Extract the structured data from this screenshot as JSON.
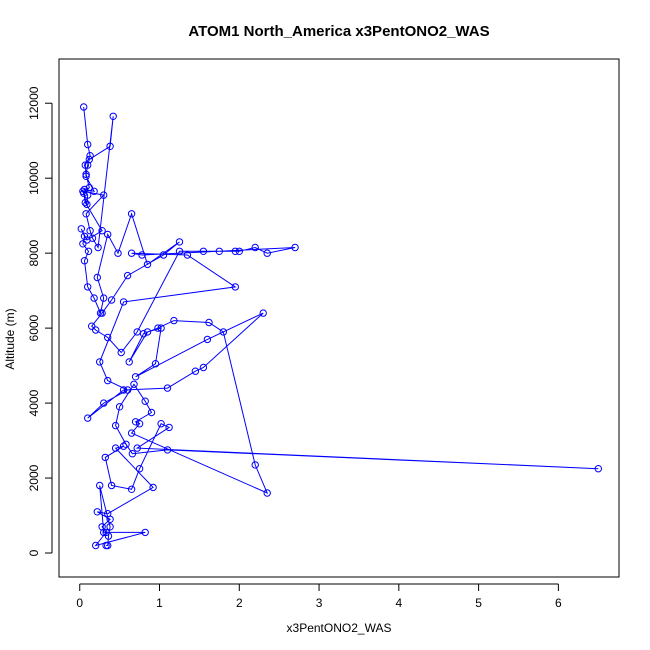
{
  "chart_data": {
    "type": "line",
    "title": "ATOM1 North_America x3PentONO2_WAS",
    "xlabel": "x3PentONO2_WAS",
    "ylabel": "Altitude (m)",
    "xlim": [
      -0.26,
      6.76
    ],
    "ylim": [
      -640,
      13180
    ],
    "xticks": [
      0,
      1,
      2,
      3,
      4,
      5,
      6
    ],
    "yticks": [
      0,
      2000,
      4000,
      6000,
      8000,
      10000,
      12000
    ],
    "grid": false,
    "legend": "none",
    "series": [
      {
        "color": "#0000ff",
        "marker": "open-circle",
        "x": [
          0.05,
          0.1,
          0.13,
          0.07,
          0.08,
          0.18,
          0.06,
          0.1,
          0.09,
          0.04,
          0.3,
          0.08,
          0.13,
          0.16,
          0.23,
          0.42,
          0.38,
          0.12,
          0.1,
          0.08,
          0.12,
          0.05,
          0.07,
          0.28,
          0.09,
          0.02,
          0.06,
          0.04,
          0.11,
          0.06,
          0.1,
          0.18,
          0.26,
          0.3,
          0.22,
          0.35,
          0.48,
          0.65,
          0.85,
          1.25,
          1.05,
          0.6,
          0.4,
          0.28,
          0.15,
          0.2,
          0.35,
          0.52,
          0.72,
          1.25,
          1.55,
          1.75,
          1.95,
          2.0,
          2.2,
          2.35,
          2.7,
          0.78,
          0.65,
          1.35,
          1.95,
          0.55,
          0.25,
          0.35,
          0.6,
          0.3,
          0.1,
          0.55,
          1.1,
          1.45,
          1.55,
          2.3,
          1.6,
          0.7,
          0.95,
          1.02,
          0.85,
          0.62,
          0.8,
          0.98,
          1.18,
          1.62,
          1.8,
          2.2,
          2.35,
          0.65,
          0.75,
          0.7,
          0.9,
          0.82,
          0.68,
          0.5,
          0.45,
          0.58,
          0.66,
          1.1,
          6.5,
          0.72,
          1.12,
          1.02,
          0.75,
          0.65,
          0.4,
          0.32,
          0.55,
          0.45,
          0.92,
          0.35,
          0.22,
          0.38,
          0.28,
          0.33,
          0.2,
          0.82,
          0.3,
          0.25,
          0.38,
          0.36,
          0.35,
          0.33
        ],
        "y": [
          11900,
          10900,
          10600,
          10350,
          10050,
          9650,
          9700,
          9550,
          9300,
          9650,
          9550,
          9050,
          8600,
          8400,
          8150,
          11650,
          10850,
          10500,
          10350,
          10100,
          9750,
          9600,
          9350,
          8600,
          8350,
          8650,
          8450,
          8250,
          8050,
          7800,
          7100,
          6800,
          6400,
          6800,
          7350,
          8500,
          8000,
          9050,
          7700,
          8300,
          7950,
          7400,
          6750,
          6400,
          6050,
          5950,
          5750,
          5350,
          5900,
          8050,
          8050,
          8050,
          8050,
          8050,
          8150,
          8000,
          8150,
          7950,
          8000,
          7950,
          7100,
          6700,
          5100,
          4600,
          4350,
          4000,
          3600,
          4350,
          4400,
          4850,
          4950,
          6400,
          5700,
          4700,
          5050,
          6000,
          5900,
          5100,
          5850,
          6000,
          6200,
          6150,
          5900,
          2350,
          1600,
          3200,
          3450,
          3500,
          3750,
          4050,
          4500,
          3900,
          3400,
          2900,
          2650,
          2750,
          2250,
          2800,
          3350,
          3450,
          2250,
          1700,
          1800,
          2550,
          2850,
          2800,
          1750,
          1050,
          1100,
          900,
          700,
          550,
          200,
          550,
          550,
          1800,
          700,
          450,
          200,
          200
        ]
      }
    ]
  }
}
